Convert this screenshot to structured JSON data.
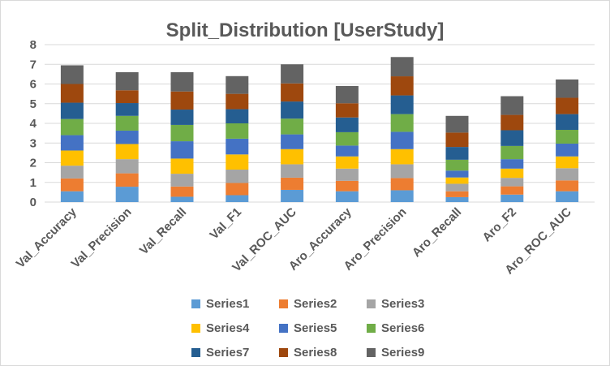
{
  "chart_data": {
    "type": "bar",
    "stacked": true,
    "title": "Split_Distribution [UserStudy]",
    "xlabel": "",
    "ylabel": "",
    "ylim": [
      0,
      8
    ],
    "yticks": [
      "0",
      "1",
      "2",
      "3",
      "4",
      "5",
      "6",
      "7",
      "8"
    ],
    "grid": true,
    "legend_position": "bottom",
    "categories": [
      "Val_Accuracy",
      "Val_Precision",
      "Val_Recall",
      "Val_F1",
      "Val_ROC_AUC",
      "Aro_Accuracy",
      "Aro_Precision",
      "Aro_Recall",
      "Aro_F2",
      "Aro_ROC_AUC"
    ],
    "series": [
      {
        "name": "Series1",
        "color": "#5b9bd5",
        "values": [
          0.55,
          0.78,
          0.27,
          0.35,
          0.62,
          0.55,
          0.6,
          0.25,
          0.38,
          0.55
        ]
      },
      {
        "name": "Series2",
        "color": "#ed7d31",
        "values": [
          0.65,
          0.68,
          0.52,
          0.62,
          0.62,
          0.53,
          0.62,
          0.3,
          0.42,
          0.55
        ]
      },
      {
        "name": "Series3",
        "color": "#a5a5a5",
        "values": [
          0.65,
          0.72,
          0.65,
          0.68,
          0.68,
          0.62,
          0.7,
          0.38,
          0.43,
          0.62
        ]
      },
      {
        "name": "Series4",
        "color": "#ffc000",
        "values": [
          0.77,
          0.77,
          0.77,
          0.77,
          0.77,
          0.62,
          0.77,
          0.32,
          0.47,
          0.6
        ]
      },
      {
        "name": "Series5",
        "color": "#4472c4",
        "values": [
          0.78,
          0.68,
          0.88,
          0.8,
          0.75,
          0.55,
          0.88,
          0.35,
          0.48,
          0.65
        ]
      },
      {
        "name": "Series6",
        "color": "#70ad47",
        "values": [
          0.82,
          0.75,
          0.83,
          0.78,
          0.8,
          0.68,
          0.9,
          0.55,
          0.67,
          0.7
        ]
      },
      {
        "name": "Series7",
        "color": "#255e91",
        "values": [
          0.83,
          0.65,
          0.78,
          0.72,
          0.87,
          0.75,
          0.95,
          0.65,
          0.8,
          0.8
        ]
      },
      {
        "name": "Series8",
        "color": "#9e480e",
        "values": [
          0.95,
          0.65,
          0.92,
          0.78,
          0.92,
          0.72,
          0.97,
          0.73,
          0.78,
          0.83
        ]
      },
      {
        "name": "Series9",
        "color": "#636363",
        "values": [
          0.95,
          0.92,
          0.98,
          0.9,
          0.97,
          0.88,
          0.98,
          0.85,
          0.95,
          0.93
        ]
      }
    ]
  }
}
